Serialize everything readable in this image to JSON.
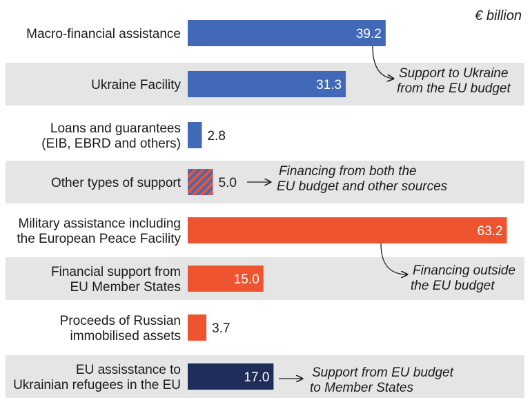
{
  "chart_data": {
    "type": "bar",
    "orientation": "horizontal",
    "unit_label": "€ billion",
    "categories": [
      [
        "Macro-financial assistance"
      ],
      [
        "Ukraine Facility"
      ],
      [
        "Loans and guarantees",
        "(EIB, EBRD and others)"
      ],
      [
        "Other types of support"
      ],
      [
        "Military assistance including",
        "the European Peace Facility"
      ],
      [
        "Financial support from",
        "EU Member States"
      ],
      [
        "Proceeds of Russian",
        "immobilised assets"
      ],
      [
        "EU assisstance to",
        "Ukrainian refugees in the EU"
      ]
    ],
    "values": [
      39.2,
      31.3,
      2.8,
      5.0,
      63.2,
      15.0,
      3.7,
      17.0
    ],
    "value_labels": [
      "39.2",
      "31.3",
      "2.8",
      "5.0",
      "63.2",
      "15.0",
      "3.7",
      "17.0"
    ],
    "label_inside": [
      true,
      true,
      false,
      false,
      true,
      true,
      false,
      true
    ],
    "bar_colors": [
      "#4169b8",
      "#4169b8",
      "#4169b8",
      "striped",
      "#ef5430",
      "#ef5430",
      "#ef5430",
      "#1f2d5a"
    ],
    "colors": {
      "eu_budget": "#4169b8",
      "outside": "#ef5430",
      "member_states": "#1f2d5a",
      "band": "#e5e5e5"
    },
    "annotations": [
      {
        "lines": [
          "Support to Ukraine",
          "from the EU budget"
        ],
        "group": "eu_budget"
      },
      {
        "lines": [
          "Financing from both the",
          "EU budget and other sources"
        ],
        "group": "mixed"
      },
      {
        "lines": [
          "Financing outside",
          "the EU budget"
        ],
        "group": "outside"
      },
      {
        "lines": [
          "Support from EU budget",
          "to Member States"
        ],
        "group": "member_states"
      }
    ],
    "xlim": [
      0,
      64.5
    ]
  }
}
